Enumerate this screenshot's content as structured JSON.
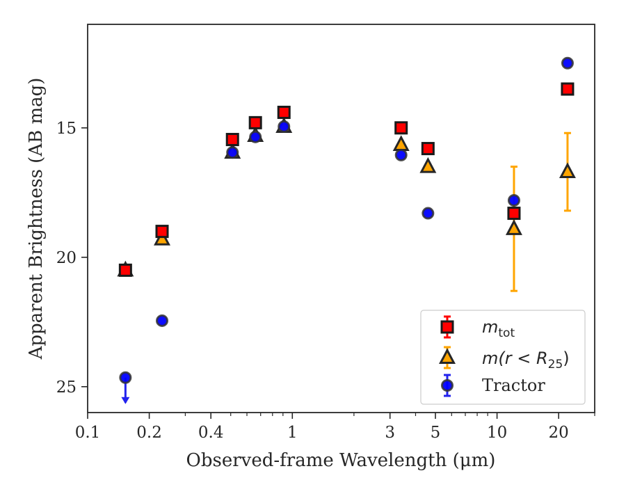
{
  "chart_data": {
    "type": "scatter",
    "xlabel": "Observed-frame Wavelength (μm)",
    "ylabel": "Apparent Brightness (AB mag)",
    "x_scale": "log",
    "xlim": [
      0.1,
      30
    ],
    "ylim": [
      26,
      11
    ],
    "y_inverted": true,
    "x_ticks": [
      0.1,
      0.2,
      0.4,
      1,
      3,
      5,
      10,
      20
    ],
    "x_tick_labels": [
      "0.1",
      "0.2",
      "0.4",
      "1",
      "3",
      "5",
      "10",
      "20"
    ],
    "y_ticks": [
      15,
      20,
      25
    ],
    "y_tick_labels": [
      "15",
      "20",
      "25"
    ],
    "legend_position": "lower right",
    "grid": false,
    "series": [
      {
        "name": "m_tot",
        "marker": "square",
        "color": "#ff0000",
        "edge_color": "#1a1a1a",
        "x": [
          0.153,
          0.231,
          0.51,
          0.66,
          0.91,
          3.4,
          4.6,
          12.1,
          22.1
        ],
        "y": [
          20.5,
          19.0,
          15.45,
          14.8,
          14.4,
          15.0,
          15.8,
          18.3,
          13.5
        ],
        "err": [
          0,
          0,
          0,
          0,
          0,
          0,
          0,
          0,
          0
        ]
      },
      {
        "name": "m(r < R25)",
        "marker": "triangle",
        "color": "#ffa500",
        "edge_color": "#262626",
        "x": [
          0.153,
          0.231,
          0.51,
          0.66,
          0.91,
          3.4,
          4.6,
          12.1,
          22.1
        ],
        "y": [
          20.5,
          19.3,
          15.95,
          15.3,
          14.95,
          15.65,
          16.5,
          18.9,
          16.7
        ],
        "err": [
          0,
          0,
          0,
          0,
          0,
          0,
          0,
          2.4,
          1.5
        ]
      },
      {
        "name": "Tractor",
        "marker": "circle",
        "color": "#0000ff",
        "edge_color": "#333333",
        "x": [
          0.153,
          0.231,
          0.51,
          0.66,
          0.91,
          3.4,
          4.6,
          12.1,
          22.1
        ],
        "y": [
          24.65,
          22.45,
          15.95,
          15.35,
          14.95,
          16.05,
          18.3,
          17.8,
          12.5
        ],
        "err": [
          0,
          0,
          0,
          0,
          0,
          0,
          0,
          0,
          0
        ],
        "upper_limit": [
          true,
          false,
          false,
          false,
          false,
          false,
          false,
          false,
          false
        ]
      }
    ],
    "legend": [
      {
        "label_main": "m",
        "label_sub": "tot",
        "label_tail": ""
      },
      {
        "label_main": "m(r < R",
        "label_sub": "25",
        "label_tail": ")"
      },
      {
        "label_main": "Tractor",
        "label_sub": "",
        "label_tail": ""
      }
    ]
  }
}
